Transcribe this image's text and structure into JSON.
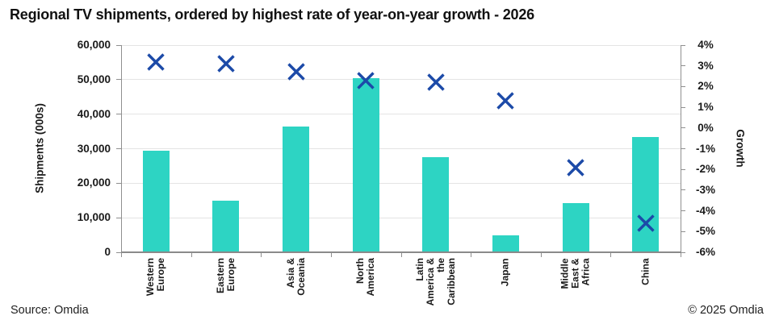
{
  "title": "Regional TV shipments, ordered by highest rate of year-on-year growth - 2026",
  "footer": {
    "source": "Source: Omdia",
    "copyright": "© 2025 Omdia"
  },
  "colors": {
    "bar": "#2dd4c3",
    "marker": "#1c4aa8",
    "gridline": "#e4e4e4",
    "axis": "#8f8f8f"
  },
  "chart_data": {
    "type": "bar",
    "subtype": "combo: bars (shipments, left axis) + x-markers (growth %, right axis), dual axis, no legend",
    "title": "Regional TV shipments, ordered by highest rate of year-on-year growth - 2026",
    "categories": [
      "Western Europe",
      "Eastern Europe",
      "Asia & Oceania",
      "North America",
      "Latin America & the Caribbean",
      "Japan",
      "Middle East & Africa",
      "China"
    ],
    "category_label_lines": [
      [
        "Western",
        "Europe"
      ],
      [
        "Eastern",
        "Europe"
      ],
      [
        "Asia &",
        "Oceania"
      ],
      [
        "North",
        "America"
      ],
      [
        "Latin",
        "America &",
        "the",
        "Caribbean"
      ],
      [
        "Japan"
      ],
      [
        "Middle",
        "East &",
        "Africa"
      ],
      [
        "China"
      ]
    ],
    "series": [
      {
        "name": "Shipments (000s)",
        "type": "bar",
        "axis": "left",
        "values": [
          29500,
          15000,
          36500,
          50500,
          27500,
          4900,
          14200,
          33500
        ]
      },
      {
        "name": "Growth",
        "type": "scatter",
        "marker": "x",
        "axis": "right",
        "values": [
          3.2,
          3.1,
          2.7,
          2.3,
          2.2,
          1.3,
          -1.9,
          -4.6
        ]
      }
    ],
    "left_axis": {
      "label": "Shipments (000s)",
      "min": 0,
      "max": 60000,
      "step": 10000,
      "tick_labels": [
        "0",
        "10,000",
        "20,000",
        "30,000",
        "40,000",
        "50,000",
        "60,000"
      ]
    },
    "right_axis": {
      "label": "Growth",
      "min": -6,
      "max": 4,
      "step": 1,
      "tick_labels_top_down": [
        "4%",
        "3%",
        "2%",
        "1%",
        "0%",
        "-1%",
        "-2%",
        "-3%",
        "-4%",
        "-5%",
        "-6%"
      ]
    },
    "grid": true,
    "legend": "none"
  }
}
